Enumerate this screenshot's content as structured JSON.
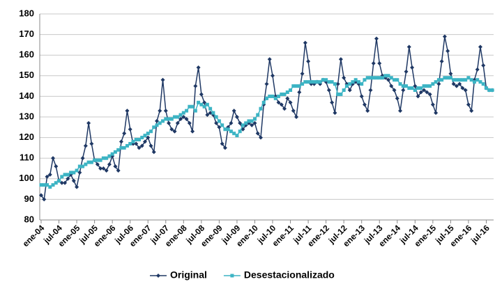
{
  "chart_data": {
    "type": "line",
    "categories": [
      "ene-04",
      null,
      null,
      null,
      null,
      null,
      "jul-04",
      null,
      null,
      null,
      null,
      null,
      "ene-05",
      null,
      null,
      null,
      null,
      null,
      "jul-05",
      null,
      null,
      null,
      null,
      null,
      "ene-06",
      null,
      null,
      null,
      null,
      null,
      "jul-06",
      null,
      null,
      null,
      null,
      null,
      "ene-07",
      null,
      null,
      null,
      null,
      null,
      "jul-07",
      null,
      null,
      null,
      null,
      null,
      "ene-08",
      null,
      null,
      null,
      null,
      null,
      "jul-08",
      null,
      null,
      null,
      null,
      null,
      "ene-09",
      null,
      null,
      null,
      null,
      null,
      "jul-09",
      null,
      null,
      null,
      null,
      null,
      "ene-10",
      null,
      null,
      null,
      null,
      null,
      "jul-10",
      null,
      null,
      null,
      null,
      null,
      "ene-11",
      null,
      null,
      null,
      null,
      null,
      "jul-11",
      null,
      null,
      null,
      null,
      null,
      "ene-12",
      null,
      null,
      null,
      null,
      null,
      "jul-12",
      null,
      null,
      null,
      null,
      null,
      "ene-13",
      null,
      null,
      null,
      null,
      null,
      "jul-13",
      null,
      null,
      null,
      null,
      null,
      "ene-14",
      null,
      null,
      null,
      null,
      null,
      "jul-14",
      null,
      null,
      null,
      null,
      null,
      "ene-15",
      null,
      null,
      null,
      null,
      null,
      "jul-15",
      null,
      null,
      null,
      null,
      null,
      "ene-16",
      null,
      null,
      null,
      null,
      null,
      "jul-16",
      null,
      null
    ],
    "series": [
      {
        "name": "Original",
        "color": "#1f3864",
        "marker": "diamond",
        "values": [
          92,
          90,
          101,
          102,
          110,
          106,
          99,
          98,
          98,
          100,
          102,
          99,
          96,
          103,
          110,
          116,
          127,
          117,
          109,
          107,
          105,
          105,
          104,
          107,
          111,
          106,
          104,
          118,
          122,
          133,
          124,
          117,
          117,
          115,
          116,
          118,
          120,
          116,
          113,
          128,
          133,
          148,
          133,
          127,
          124,
          123,
          127,
          129,
          130,
          129,
          127,
          123,
          145,
          154,
          141,
          137,
          131,
          132,
          131,
          127,
          125,
          117,
          115,
          125,
          127,
          133,
          130,
          127,
          124,
          126,
          127,
          126,
          127,
          122,
          120,
          136,
          146,
          158,
          150,
          140,
          137,
          136,
          134,
          139,
          137,
          133,
          130,
          142,
          151,
          166,
          157,
          146,
          146,
          147,
          146,
          148,
          147,
          143,
          137,
          132,
          146,
          158,
          149,
          146,
          143,
          146,
          147,
          146,
          140,
          136,
          133,
          143,
          156,
          168,
          156,
          150,
          149,
          148,
          145,
          143,
          139,
          133,
          143,
          152,
          164,
          154,
          145,
          140,
          142,
          143,
          142,
          141,
          136,
          132,
          146,
          157,
          169,
          162,
          151,
          146,
          145,
          146,
          144,
          143,
          136,
          133,
          148,
          153,
          164,
          155,
          144,
          143,
          143
        ]
      },
      {
        "name": "Desestacionalizado",
        "color": "#3cb4c4",
        "marker": "square",
        "values": [
          97,
          97,
          97,
          96,
          97,
          98,
          99,
          101,
          102,
          102,
          103,
          103,
          104,
          106,
          106,
          107,
          108,
          108,
          109,
          109,
          109,
          110,
          110,
          111,
          112,
          113,
          114,
          115,
          115,
          116,
          117,
          118,
          119,
          119,
          120,
          121,
          122,
          123,
          125,
          126,
          127,
          128,
          129,
          129,
          129,
          130,
          130,
          131,
          132,
          133,
          135,
          135,
          133,
          137,
          136,
          135,
          136,
          134,
          132,
          130,
          128,
          126,
          124,
          124,
          123,
          122,
          121,
          123,
          126,
          127,
          128,
          128,
          129,
          131,
          134,
          137,
          139,
          140,
          140,
          139,
          140,
          141,
          141,
          142,
          143,
          145,
          145,
          145,
          146,
          147,
          147,
          147,
          147,
          147,
          147,
          148,
          148,
          147,
          147,
          146,
          141,
          141,
          143,
          145,
          146,
          147,
          148,
          147,
          146,
          148,
          149,
          149,
          149,
          149,
          149,
          149,
          150,
          150,
          149,
          148,
          148,
          146,
          145,
          145,
          144,
          144,
          143,
          144,
          144,
          145,
          145,
          145,
          146,
          147,
          148,
          148,
          149,
          149,
          149,
          148,
          148,
          148,
          148,
          148,
          149,
          148,
          147,
          148,
          147,
          146,
          144,
          143,
          143
        ]
      }
    ],
    "ylim": [
      80,
      180
    ],
    "yticks": [
      80,
      90,
      100,
      110,
      120,
      130,
      140,
      150,
      160,
      170,
      180
    ],
    "grid": true,
    "legend": "bottom"
  }
}
